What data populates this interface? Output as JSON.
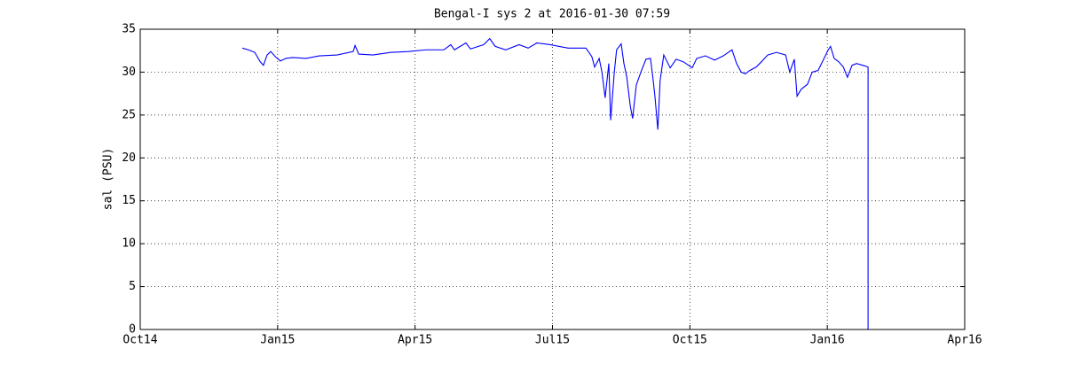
{
  "chart_data": {
    "type": "line",
    "title": "Bengal-I sys 2 at 2016-01-30 07:59",
    "y_label": "sal (PSU)",
    "color": "#0000ff",
    "grid": true,
    "xlim": [
      0,
      18
    ],
    "xticks": [
      {
        "value": 0,
        "label": "Oct14"
      },
      {
        "value": 3,
        "label": "Jan15"
      },
      {
        "value": 6,
        "label": "Apr15"
      },
      {
        "value": 9,
        "label": "Jul15"
      },
      {
        "value": 12,
        "label": "Oct15"
      },
      {
        "value": 15,
        "label": "Jan16"
      },
      {
        "value": 18,
        "label": "Apr16"
      }
    ],
    "ylim": [
      0,
      35
    ],
    "yticks": [
      0,
      5,
      10,
      15,
      20,
      25,
      30,
      35
    ],
    "x": [
      2.23,
      2.36,
      2.5,
      2.62,
      2.69,
      2.77,
      2.85,
      2.95,
      3.06,
      3.18,
      3.33,
      3.62,
      3.91,
      4.3,
      4.65,
      4.69,
      4.77,
      5.08,
      5.46,
      5.85,
      6.24,
      6.63,
      6.78,
      6.86,
      7.11,
      7.21,
      7.5,
      7.63,
      7.75,
      7.98,
      8.27,
      8.47,
      8.66,
      8.95,
      9.34,
      9.73,
      9.86,
      9.92,
      10.02,
      10.08,
      10.15,
      10.23,
      10.27,
      10.35,
      10.4,
      10.5,
      10.56,
      10.62,
      10.7,
      10.75,
      10.83,
      10.93,
      11.04,
      11.14,
      11.2,
      11.24,
      11.3,
      11.35,
      11.43,
      11.57,
      11.7,
      11.86,
      12.05,
      12.15,
      12.34,
      12.54,
      12.73,
      12.92,
      13.02,
      13.12,
      13.21,
      13.31,
      13.45,
      13.56,
      13.7,
      13.89,
      14.09,
      14.18,
      14.28,
      14.34,
      14.43,
      14.57,
      14.67,
      14.8,
      14.92,
      15.02,
      15.07,
      15.15,
      15.25,
      15.35,
      15.44,
      15.54,
      15.64,
      15.77,
      15.89,
      15.89
    ],
    "values": [
      32.8,
      32.6,
      32.3,
      31.2,
      30.8,
      32.0,
      32.4,
      31.8,
      31.3,
      31.6,
      31.7,
      31.6,
      31.9,
      32.0,
      32.4,
      33.1,
      32.1,
      32.0,
      32.3,
      32.4,
      32.6,
      32.6,
      33.2,
      32.6,
      33.4,
      32.7,
      33.2,
      33.9,
      33.0,
      32.6,
      33.2,
      32.8,
      33.4,
      33.2,
      32.8,
      32.8,
      31.8,
      30.6,
      31.6,
      30.0,
      27.0,
      31.0,
      24.4,
      30.0,
      32.6,
      33.3,
      31.0,
      29.5,
      26.0,
      24.6,
      28.5,
      30.0,
      31.5,
      31.6,
      29.0,
      27.0,
      23.3,
      29.0,
      32.0,
      30.5,
      31.5,
      31.2,
      30.5,
      31.6,
      31.9,
      31.4,
      31.9,
      32.6,
      31.0,
      30.0,
      29.8,
      30.2,
      30.6,
      31.2,
      32.0,
      32.3,
      32.0,
      30.0,
      31.5,
      27.2,
      28.0,
      28.6,
      30.0,
      30.2,
      31.5,
      32.6,
      33.0,
      31.6,
      31.2,
      30.6,
      29.4,
      30.8,
      31.0,
      30.8,
      30.6,
      0
    ]
  }
}
